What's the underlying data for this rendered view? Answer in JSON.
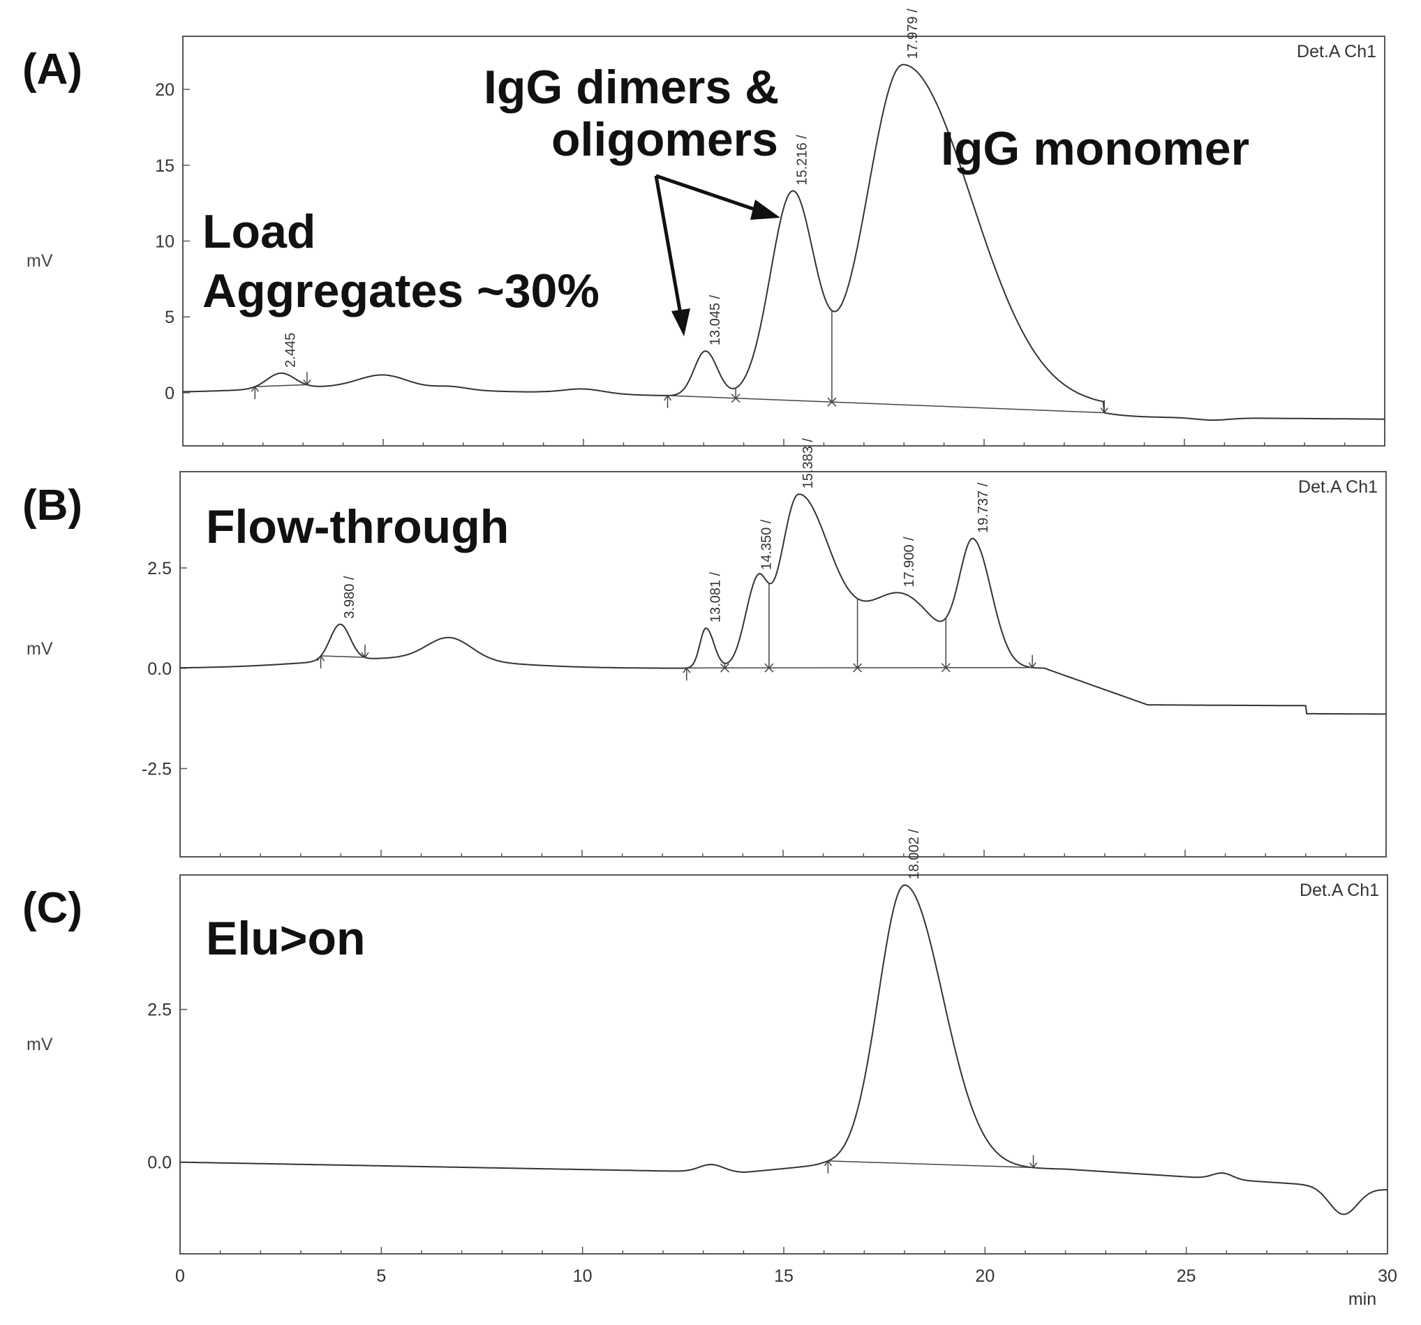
{
  "panels": {
    "A": {
      "letter": "(A)",
      "label_lines": [
        "Load",
        "Aggregates ~30%"
      ],
      "detector": "Det.A Ch1",
      "ylabel": "mV"
    },
    "B": {
      "letter": "(B)",
      "label_lines": [
        "Flow-through"
      ],
      "detector": "Det.A Ch1",
      "ylabel": "mV"
    },
    "C": {
      "letter": "(C)",
      "label_lines": [
        "Elu>on"
      ],
      "detector": "Det.A Ch1",
      "ylabel": "mV"
    }
  },
  "annotations": {
    "dimers_lines": [
      "IgG dimers &",
      "oligomers"
    ],
    "monomer": "IgG monomer"
  },
  "x_axis": {
    "unit": "min"
  },
  "chart_data": [
    {
      "type": "line",
      "panel": "A",
      "xlim": [
        0,
        30
      ],
      "ylim": [
        -3.5,
        23.5
      ],
      "x_ticks": [
        0,
        5,
        10,
        15,
        20,
        25,
        30
      ],
      "y_ticks": [
        0,
        5,
        10,
        15,
        20
      ],
      "y_tick_labels": [
        "0",
        "5",
        "10",
        "15",
        "20"
      ],
      "peaks": [
        {
          "rt": 2.445,
          "label": "2.445",
          "height": 1.0
        },
        {
          "rt": 13.045,
          "label": "13.045 /",
          "height": 3.0
        },
        {
          "rt": 15.216,
          "label": "15.216 /",
          "height": 13.5
        },
        {
          "rt": 17.979,
          "label": "17.979 /",
          "height": 22.2
        }
      ],
      "bumps": [
        {
          "x": 5.0,
          "height": 0.8,
          "width": 0.6
        },
        {
          "x": 6.7,
          "height": 0.2,
          "width": 0.4
        },
        {
          "x": 10.0,
          "height": 0.3,
          "width": 0.5
        }
      ],
      "integration_baselines": [
        [
          1.8,
          3.1
        ],
        [
          12.1,
          23.0
        ]
      ],
      "drop_lines": [
        13.8,
        16.2
      ],
      "markers": [
        {
          "x": 1.8,
          "kind": "up"
        },
        {
          "x": 3.1,
          "kind": "down"
        },
        {
          "x": 12.1,
          "kind": "up"
        },
        {
          "x": 13.8,
          "kind": "x"
        },
        {
          "x": 16.2,
          "kind": "x"
        },
        {
          "x": 23.0,
          "kind": "down"
        }
      ]
    },
    {
      "type": "line",
      "panel": "B",
      "xlim": [
        0,
        30
      ],
      "ylim": [
        -4.7,
        4.9
      ],
      "x_ticks": [
        0,
        5,
        10,
        15,
        20,
        25,
        30
      ],
      "y_ticks": [
        -2.5,
        0.0,
        2.5
      ],
      "y_tick_labels": [
        "-2.5",
        "0.0",
        "2.5"
      ],
      "peaks": [
        {
          "rt": 3.98,
          "label": "3.980 /",
          "height": 0.9
        },
        {
          "rt": 13.081,
          "label": "13.081 /",
          "height": 1.0
        },
        {
          "rt": 14.35,
          "label": "14.350 /",
          "height": 2.0
        },
        {
          "rt": 15.383,
          "label": "15.383 /",
          "height": 4.3
        },
        {
          "rt": 17.9,
          "label": "17.900 /",
          "height": 1.85
        },
        {
          "rt": 19.737,
          "label": "19.737 /",
          "height": 3.0
        }
      ],
      "bumps": [
        {
          "x": 6.7,
          "height": 0.55,
          "width": 0.55
        }
      ],
      "integration_baselines": [
        [
          3.5,
          4.6
        ],
        [
          12.6,
          21.2
        ]
      ],
      "drop_lines": [
        13.55,
        14.65,
        16.85,
        19.05
      ],
      "markers": [
        {
          "x": 3.5,
          "kind": "up"
        },
        {
          "x": 4.6,
          "kind": "down"
        },
        {
          "x": 12.6,
          "kind": "up"
        },
        {
          "x": 13.55,
          "kind": "x"
        },
        {
          "x": 14.65,
          "kind": "x"
        },
        {
          "x": 16.85,
          "kind": "x"
        },
        {
          "x": 19.05,
          "kind": "x"
        },
        {
          "x": 21.2,
          "kind": "down"
        }
      ]
    },
    {
      "type": "line",
      "panel": "C",
      "xlim": [
        0,
        30
      ],
      "ylim": [
        -1.5,
        4.7
      ],
      "x_ticks": [
        0,
        5,
        10,
        15,
        20,
        25,
        30
      ],
      "x_tick_labels": [
        "0",
        "5",
        "10",
        "15",
        "20",
        "25",
        "30"
      ],
      "y_ticks": [
        0.0,
        2.5
      ],
      "y_tick_labels": [
        "0.0",
        "2.5"
      ],
      "peaks": [
        {
          "rt": 18.002,
          "label": "18.002 /",
          "height": 4.6
        }
      ],
      "bumps": [
        {
          "x": 13.2,
          "height": 0.12,
          "width": 0.3
        },
        {
          "x": 25.9,
          "height": 0.1,
          "width": 0.25
        },
        {
          "x": 28.9,
          "height": -0.45,
          "width": 0.35
        }
      ],
      "integration_baselines": [
        [
          16.1,
          21.2
        ]
      ],
      "drop_lines": [],
      "markers": [
        {
          "x": 16.1,
          "kind": "up"
        },
        {
          "x": 21.2,
          "kind": "down"
        }
      ]
    }
  ]
}
